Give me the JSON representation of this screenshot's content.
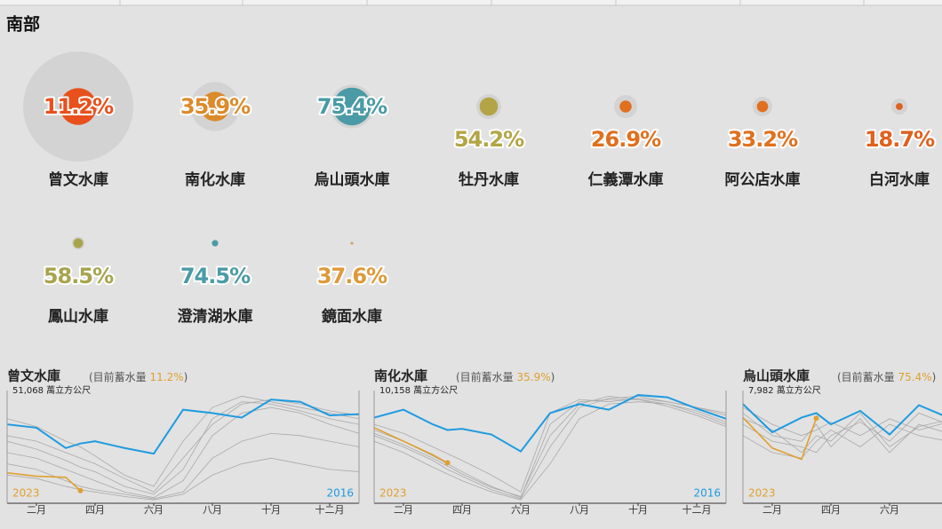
{
  "header": {
    "title": "南部"
  },
  "chart_data": [
    {
      "type": "bubble",
      "categories": [
        "曾文水庫",
        "南化水庫",
        "烏山頭水庫",
        "牡丹水庫",
        "仁義潭水庫",
        "阿公店水庫",
        "白河水庫",
        "鳳山水庫",
        "澄清湖水庫",
        "鏡面水庫"
      ],
      "values": [
        11.2,
        35.9,
        75.4,
        54.2,
        26.9,
        33.2,
        18.7,
        58.5,
        74.5,
        37.6
      ],
      "value_labels": [
        "11.2%",
        "35.9%",
        "75.4%",
        "54.2%",
        "26.9%",
        "33.2%",
        "18.7%",
        "58.5%",
        "74.5%",
        "37.6%"
      ],
      "sizes": [
        51068,
        10158,
        7982,
        2600,
        2250,
        1600,
        1080,
        690,
        215,
        60
      ],
      "colors": [
        "#e8501c",
        "#dc8a2a",
        "#4a9ba6",
        "#b3a545",
        "#e0701e",
        "#e0701e",
        "#e0601e",
        "#a7a44e",
        "#4a9ba6",
        "#dc9a3a"
      ]
    },
    {
      "type": "line",
      "title": "曾文水庫",
      "note": "(目前蓄水量 ",
      "current": "11.2%",
      "note_end": ")",
      "capacity": "51,068 萬立方公尺",
      "x": [
        1,
        2,
        3,
        3.5,
        4,
        5,
        6,
        7,
        8,
        9,
        10,
        11,
        12,
        13
      ],
      "xlim": [
        1,
        13
      ],
      "ylim": [
        0,
        100
      ],
      "xticks": [
        {
          "value": 2,
          "label": "二月"
        },
        {
          "value": 4,
          "label": "四月"
        },
        {
          "value": 6,
          "label": "六月"
        },
        {
          "value": 8,
          "label": "八月"
        },
        {
          "value": 10,
          "label": "十月"
        },
        {
          "value": 12,
          "label": "十二月"
        }
      ],
      "history": {
        "color": "#a9a9a9",
        "values": [
          [
            75,
            68,
            55,
            50,
            42,
            25,
            15,
            55,
            85,
            95,
            90,
            85,
            80,
            75
          ],
          [
            60,
            55,
            45,
            40,
            35,
            22,
            10,
            40,
            70,
            88,
            92,
            88,
            82,
            78
          ],
          [
            45,
            40,
            30,
            25,
            20,
            10,
            5,
            20,
            60,
            80,
            85,
            80,
            70,
            62
          ],
          [
            35,
            30,
            20,
            15,
            12,
            8,
            4,
            10,
            40,
            55,
            62,
            60,
            55,
            50
          ],
          [
            55,
            48,
            38,
            32,
            28,
            15,
            8,
            30,
            75,
            90,
            88,
            82,
            75,
            70
          ],
          [
            25,
            22,
            15,
            12,
            10,
            6,
            3,
            8,
            25,
            35,
            40,
            35,
            30,
            28
          ]
        ]
      },
      "series": [
        {
          "name": "2016",
          "color": "#1e9be0",
          "values": [
            70,
            67,
            49,
            53,
            55,
            49,
            44,
            83,
            80,
            76,
            92,
            90,
            78,
            79
          ]
        },
        {
          "name": "2023",
          "color": "#e0a030",
          "values": [
            27,
            24,
            23,
            11.2,
            null,
            null,
            null,
            null,
            null,
            null,
            null,
            null,
            null,
            null
          ]
        }
      ]
    },
    {
      "type": "line",
      "title": "南化水庫",
      "note": "(目前蓄水量 ",
      "current": "35.9%",
      "note_end": ")",
      "capacity": "10,158 萬立方公尺",
      "x": [
        1,
        2,
        3,
        3.5,
        4,
        5,
        6,
        7,
        8,
        9,
        10,
        11,
        12,
        13
      ],
      "xlim": [
        1,
        13
      ],
      "ylim": [
        0,
        100
      ],
      "xticks": [
        {
          "value": 2,
          "label": "二月"
        },
        {
          "value": 4,
          "label": "四月"
        },
        {
          "value": 6,
          "label": "六月"
        },
        {
          "value": 8,
          "label": "八月"
        },
        {
          "value": 10,
          "label": "十月"
        },
        {
          "value": 12,
          "label": "十二月"
        }
      ],
      "history": {
        "color": "#a9a9a9",
        "values": [
          [
            65,
            55,
            42,
            35,
            28,
            15,
            5,
            70,
            90,
            92,
            92,
            88,
            82,
            72
          ],
          [
            60,
            50,
            38,
            30,
            24,
            12,
            4,
            50,
            85,
            93,
            95,
            90,
            85,
            78
          ],
          [
            70,
            62,
            50,
            44,
            38,
            25,
            10,
            80,
            92,
            90,
            93,
            90,
            85,
            80
          ],
          [
            55,
            45,
            32,
            26,
            20,
            10,
            3,
            35,
            75,
            88,
            90,
            88,
            80,
            70
          ],
          [
            62,
            52,
            40,
            33,
            26,
            14,
            6,
            60,
            88,
            95,
            92,
            86,
            78,
            68
          ]
        ]
      },
      "series": [
        {
          "name": "2016",
          "color": "#1e9be0",
          "values": [
            76,
            83,
            70,
            65,
            66,
            61,
            46,
            80,
            88,
            83,
            96,
            94,
            84,
            75
          ]
        },
        {
          "name": "2023",
          "color": "#e0a030",
          "values": [
            67,
            55,
            43,
            35.9,
            null,
            null,
            null,
            null,
            null,
            null,
            null,
            null,
            null,
            null
          ]
        }
      ]
    },
    {
      "type": "line",
      "title": "烏山頭水庫",
      "note": "(目前蓄水量 ",
      "current": "75.4%",
      "note_end": ")",
      "capacity": "7,982 萬立方公尺",
      "x": [
        1,
        2,
        3,
        3.5,
        4,
        5,
        6,
        7,
        8
      ],
      "xlim": [
        1,
        7.8
      ],
      "ylim": [
        0,
        100
      ],
      "xticks": [
        {
          "value": 2,
          "label": "二月"
        },
        {
          "value": 4,
          "label": "四月"
        },
        {
          "value": 6,
          "label": "六月"
        }
      ],
      "history": {
        "color": "#a9a9a9",
        "values": [
          [
            80,
            60,
            55,
            70,
            50,
            75,
            45,
            70,
            62
          ],
          [
            70,
            55,
            50,
            45,
            60,
            72,
            55,
            80,
            70
          ],
          [
            85,
            70,
            60,
            65,
            72,
            60,
            75,
            65,
            72
          ],
          [
            60,
            45,
            40,
            55,
            65,
            50,
            70,
            60,
            55
          ],
          [
            75,
            65,
            45,
            60,
            55,
            80,
            50,
            68,
            74
          ]
        ]
      },
      "series": [
        {
          "color": "#1e9be0",
          "values": [
            88,
            63,
            76,
            80,
            70,
            82,
            61,
            87,
            76
          ]
        },
        {
          "name": "2023",
          "color": "#e0a030",
          "values": [
            76,
            49,
            39,
            75.4,
            null,
            null,
            null,
            null,
            null
          ]
        }
      ]
    }
  ]
}
